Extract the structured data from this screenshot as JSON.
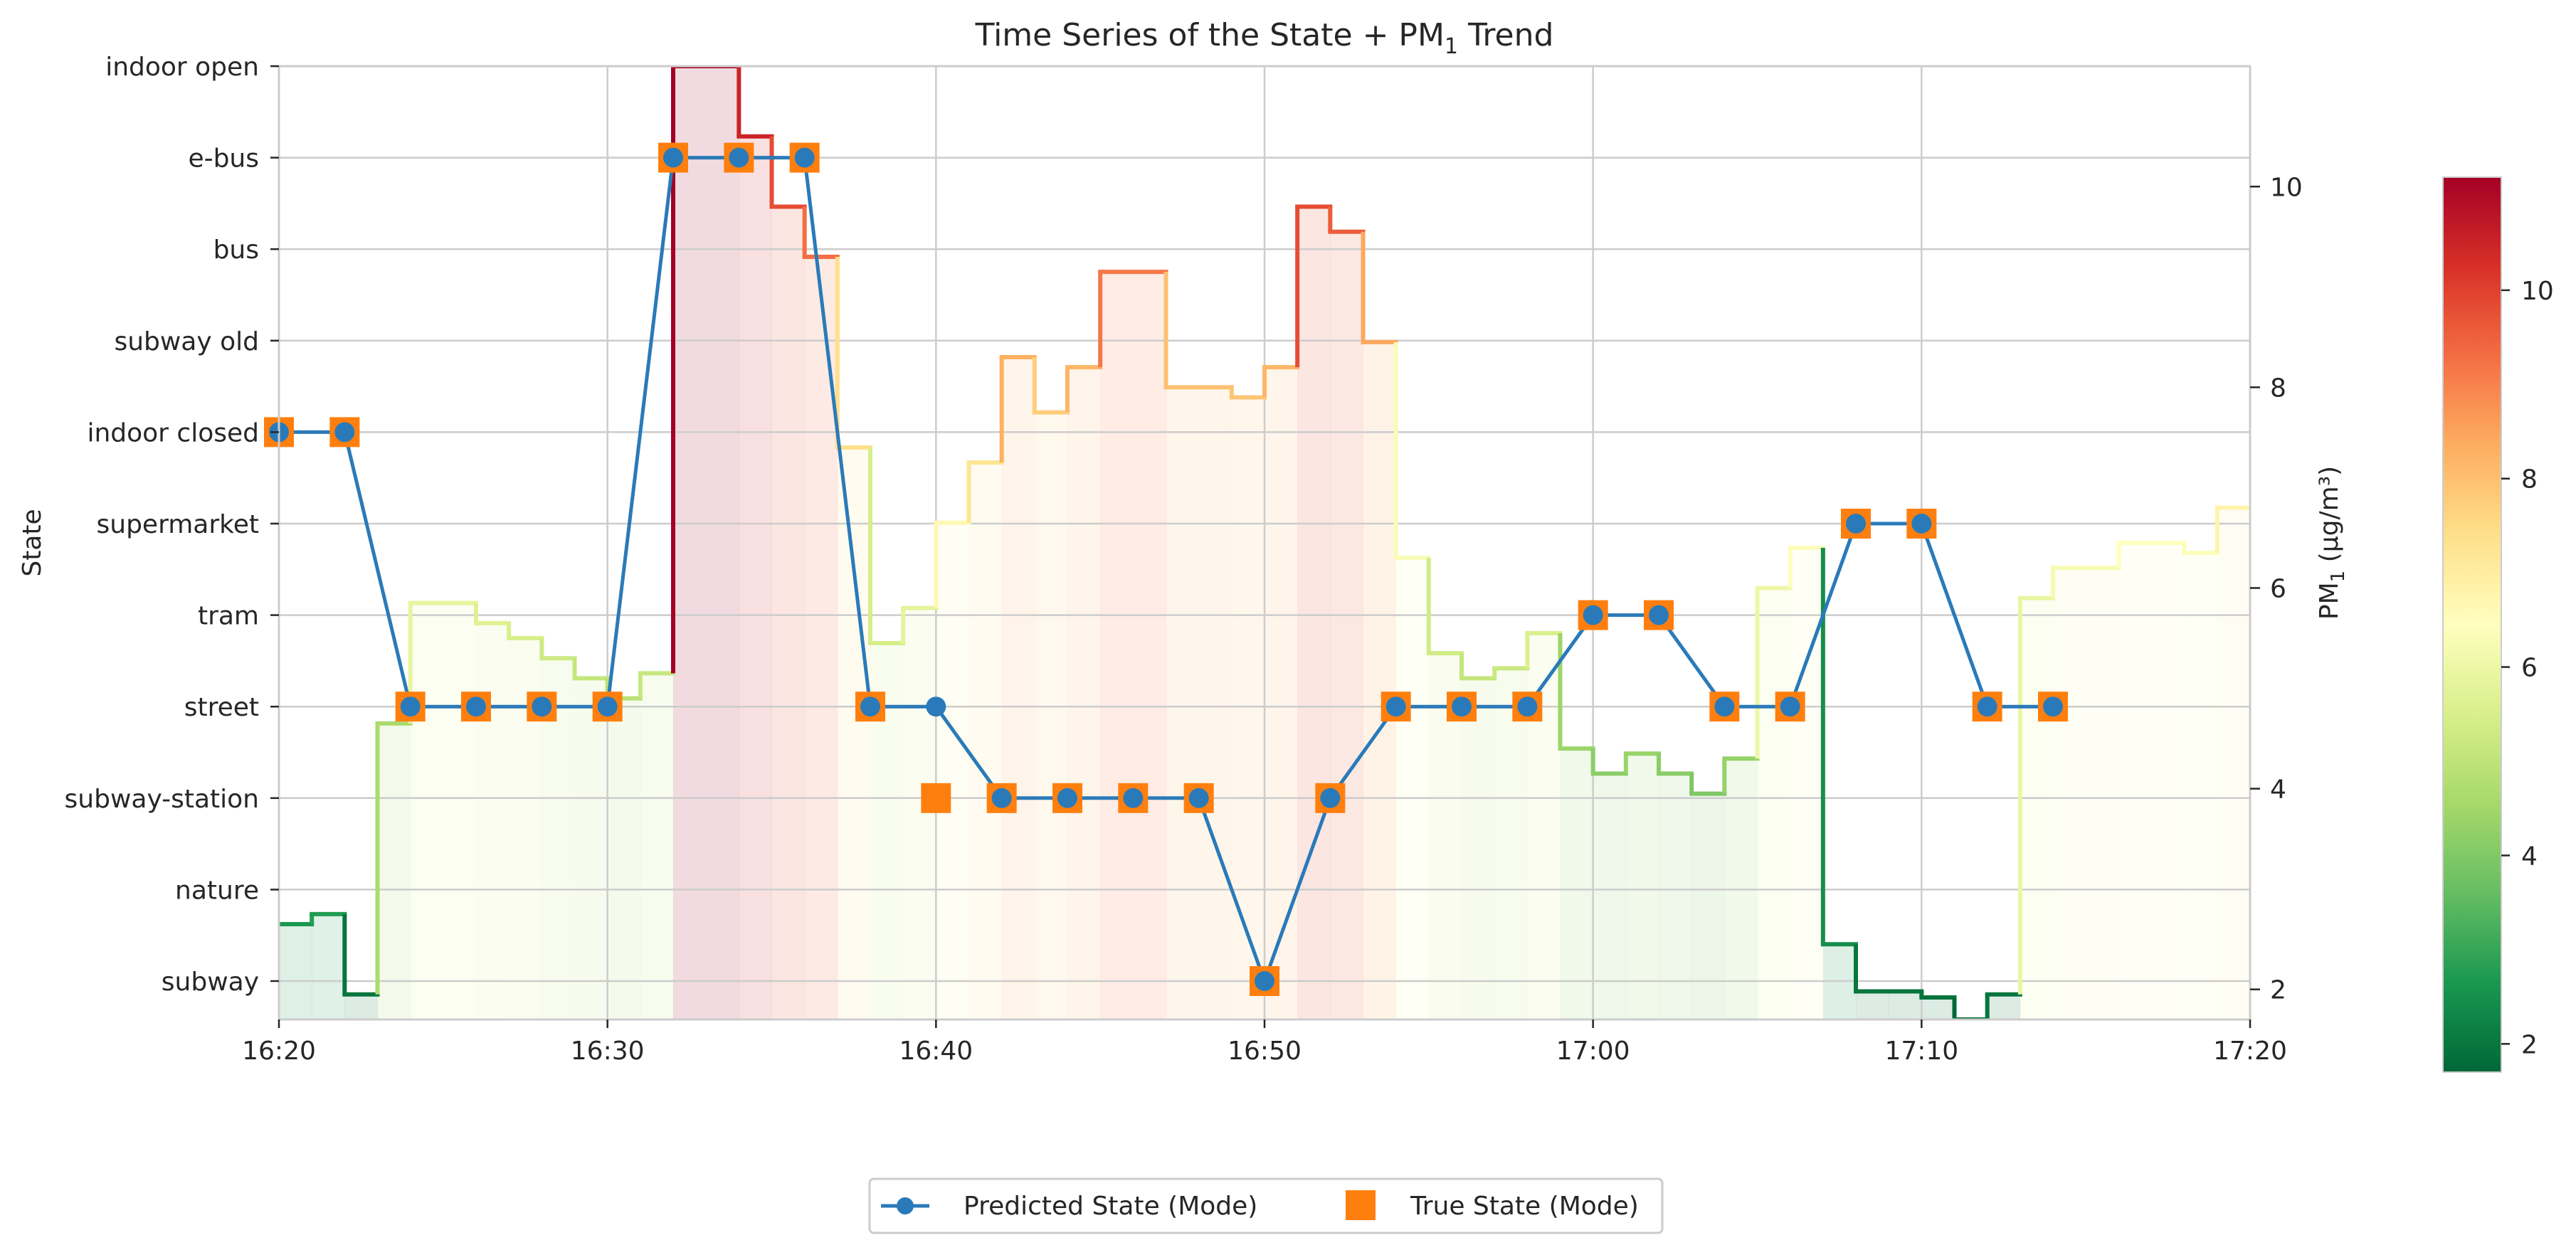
{
  "chart_data": {
    "type": "line",
    "title_main": "Time Series of the State + PM",
    "title_sub": "1",
    "title_tail": " Trend",
    "ylabel_left": "State",
    "ylabel_right_main": "PM",
    "ylabel_right_sub": "1",
    "ylabel_right_tail": " (µg/m³)",
    "x_ticks": [
      "16:20",
      "16:30",
      "16:40",
      "16:50",
      "17:00",
      "17:10",
      "17:20"
    ],
    "x_range_minutes": [
      0,
      60
    ],
    "states": [
      "subway",
      "nature",
      "subway-station",
      "street",
      "tram",
      "supermarket",
      "indoor closed",
      "subway old",
      "bus",
      "e-bus",
      "indoor open"
    ],
    "pm_axis_range": [
      1.7,
      11.2
    ],
    "pm_ticks": [
      2,
      4,
      6,
      8,
      10
    ],
    "colorbar_ticks": [
      2,
      4,
      6,
      8,
      10
    ],
    "colorbar_range": [
      1.7,
      11.2
    ],
    "colors": {
      "predicted": "#2a7ab9",
      "true": "#ff7f0e",
      "grid": "#cccccc",
      "spine": "#cccccc"
    },
    "pm_series": [
      {
        "t": 0,
        "v": 2.65
      },
      {
        "t": 1,
        "v": 2.75
      },
      {
        "t": 2,
        "v": 1.95
      },
      {
        "t": 3,
        "v": 4.65
      },
      {
        "t": 4,
        "v": 5.85
      },
      {
        "t": 6,
        "v": 5.65
      },
      {
        "t": 7,
        "v": 5.5
      },
      {
        "t": 8,
        "v": 5.3
      },
      {
        "t": 9,
        "v": 5.1
      },
      {
        "t": 10,
        "v": 4.9
      },
      {
        "t": 11,
        "v": 5.15
      },
      {
        "t": 12,
        "v": 11.2
      },
      {
        "t": 14,
        "v": 10.5
      },
      {
        "t": 15,
        "v": 9.8
      },
      {
        "t": 16,
        "v": 9.3
      },
      {
        "t": 17,
        "v": 7.4
      },
      {
        "t": 18,
        "v": 5.45
      },
      {
        "t": 19,
        "v": 5.8
      },
      {
        "t": 20,
        "v": 6.65
      },
      {
        "t": 21,
        "v": 7.25
      },
      {
        "t": 22,
        "v": 8.3
      },
      {
        "t": 23,
        "v": 7.75
      },
      {
        "t": 24,
        "v": 8.2
      },
      {
        "t": 25,
        "v": 9.15
      },
      {
        "t": 27,
        "v": 8.0
      },
      {
        "t": 29,
        "v": 7.9
      },
      {
        "t": 30,
        "v": 8.2
      },
      {
        "t": 31,
        "v": 9.8
      },
      {
        "t": 32,
        "v": 9.55
      },
      {
        "t": 33,
        "v": 8.45
      },
      {
        "t": 34,
        "v": 6.3
      },
      {
        "t": 35,
        "v": 5.35
      },
      {
        "t": 36,
        "v": 5.1
      },
      {
        "t": 37,
        "v": 5.2
      },
      {
        "t": 38,
        "v": 5.55
      },
      {
        "t": 39,
        "v": 4.4
      },
      {
        "t": 40,
        "v": 4.15
      },
      {
        "t": 41,
        "v": 4.35
      },
      {
        "t": 42,
        "v": 4.15
      },
      {
        "t": 43,
        "v": 3.95
      },
      {
        "t": 44,
        "v": 4.3
      },
      {
        "t": 45,
        "v": 6.0
      },
      {
        "t": 46,
        "v": 6.4
      },
      {
        "t": 47,
        "v": 2.45
      },
      {
        "t": 48,
        "v": 1.98
      },
      {
        "t": 49,
        "v": 1.98
      },
      {
        "t": 50,
        "v": 1.92
      },
      {
        "t": 51,
        "v": 1.7
      },
      {
        "t": 52,
        "v": 1.95
      },
      {
        "t": 53,
        "v": 5.9
      },
      {
        "t": 54,
        "v": 6.2
      },
      {
        "t": 56,
        "v": 6.45
      },
      {
        "t": 58,
        "v": 6.35
      },
      {
        "t": 59,
        "v": 6.8
      },
      {
        "t": 60,
        "v": 6.8
      }
    ],
    "predicted_state": [
      {
        "t": 0,
        "s": "indoor closed"
      },
      {
        "t": 2,
        "s": "indoor closed"
      },
      {
        "t": 4,
        "s": "street"
      },
      {
        "t": 6,
        "s": "street"
      },
      {
        "t": 8,
        "s": "street"
      },
      {
        "t": 10,
        "s": "street"
      },
      {
        "t": 12,
        "s": "e-bus"
      },
      {
        "t": 14,
        "s": "e-bus"
      },
      {
        "t": 16,
        "s": "e-bus"
      },
      {
        "t": 18,
        "s": "street"
      },
      {
        "t": 20,
        "s": "street"
      },
      {
        "t": 22,
        "s": "subway-station"
      },
      {
        "t": 24,
        "s": "subway-station"
      },
      {
        "t": 26,
        "s": "subway-station"
      },
      {
        "t": 28,
        "s": "subway-station"
      },
      {
        "t": 30,
        "s": "subway"
      },
      {
        "t": 32,
        "s": "subway-station"
      },
      {
        "t": 34,
        "s": "street"
      },
      {
        "t": 36,
        "s": "street"
      },
      {
        "t": 38,
        "s": "street"
      },
      {
        "t": 40,
        "s": "tram"
      },
      {
        "t": 42,
        "s": "tram"
      },
      {
        "t": 44,
        "s": "street"
      },
      {
        "t": 46,
        "s": "street"
      },
      {
        "t": 48,
        "s": "supermarket"
      },
      {
        "t": 50,
        "s": "supermarket"
      },
      {
        "t": 52,
        "s": "street"
      },
      {
        "t": 54,
        "s": "street"
      }
    ],
    "true_state": [
      {
        "t": 0,
        "s": "indoor closed"
      },
      {
        "t": 2,
        "s": "indoor closed"
      },
      {
        "t": 4,
        "s": "street"
      },
      {
        "t": 6,
        "s": "street"
      },
      {
        "t": 8,
        "s": "street"
      },
      {
        "t": 10,
        "s": "street"
      },
      {
        "t": 12,
        "s": "e-bus"
      },
      {
        "t": 14,
        "s": "e-bus"
      },
      {
        "t": 16,
        "s": "e-bus"
      },
      {
        "t": 18,
        "s": "street"
      },
      {
        "t": 20,
        "s": "subway-station"
      },
      {
        "t": 22,
        "s": "subway-station"
      },
      {
        "t": 24,
        "s": "subway-station"
      },
      {
        "t": 26,
        "s": "subway-station"
      },
      {
        "t": 28,
        "s": "subway-station"
      },
      {
        "t": 30,
        "s": "subway"
      },
      {
        "t": 32,
        "s": "subway-station"
      },
      {
        "t": 34,
        "s": "street"
      },
      {
        "t": 36,
        "s": "street"
      },
      {
        "t": 38,
        "s": "street"
      },
      {
        "t": 40,
        "s": "tram"
      },
      {
        "t": 42,
        "s": "tram"
      },
      {
        "t": 44,
        "s": "street"
      },
      {
        "t": 46,
        "s": "street"
      },
      {
        "t": 48,
        "s": "supermarket"
      },
      {
        "t": 50,
        "s": "supermarket"
      },
      {
        "t": 52,
        "s": "street"
      },
      {
        "t": 54,
        "s": "street"
      }
    ],
    "legend": [
      {
        "label": "Predicted State (Mode)",
        "marker": "line-circle"
      },
      {
        "label": "True State (Mode)",
        "marker": "square"
      }
    ],
    "legend_position": "bottom-center"
  }
}
